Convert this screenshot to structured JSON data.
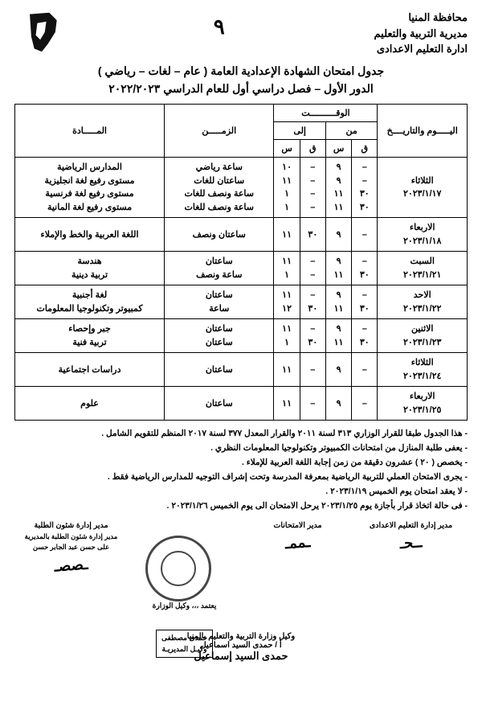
{
  "header": {
    "governorate": "محافظة المنيا",
    "directorate": "مديرية التربية والتعليم",
    "department": "ادارة التعليم الاعدادى",
    "page_number": "٩"
  },
  "title": {
    "line1": "جدول امتحان الشهادة الإعدادية العامة ( عام – لغات – رياضي )",
    "line2": "الدور الأول – فصل دراسي أول  للعام الدراسي ٢٠٢٢/٢٠٢٣"
  },
  "table": {
    "head": {
      "date": "اليـــــوم والتاريــــخ",
      "time": "الوقــــــــــت",
      "from": "من",
      "to": "إلى",
      "q": "ق",
      "s": "س",
      "duration": "الزمـــــن",
      "subject": "المـــــادة"
    },
    "rows": [
      {
        "date": "الثلاثاء\n٢٠٢٣/١/١٧",
        "from_q": "–\n–\n٣٠\n٣٠",
        "from_s": "٩\n٩\n١١\n١١",
        "to_q": "–\n–\n–\n–",
        "to_s": "١٠\n١١\n١\n١",
        "duration": "ساعة رياضي\nساعتان للغات\nساعة ونصف للغات\nساعة ونصف للغات",
        "subject": "المدارس الرياضية\nمستوى رفيع لغة انجليزية\nمستوى رفيع لغة فرنسية\nمستوى رفيع لغة المانية"
      },
      {
        "date": "الاربعاء\n٢٠٢٣/١/١٨",
        "from_q": "–",
        "from_s": "٩",
        "to_q": "٣٠",
        "to_s": "١١",
        "duration": "ساعتان ونصف",
        "subject": "اللغة العربية والخط والإملاء"
      },
      {
        "date": "السبت\n٢٠٢٣/١/٢١",
        "from_q": "–\n٣٠",
        "from_s": "٩\n١١",
        "to_q": "–\n–",
        "to_s": "١١\n١",
        "duration": "ساعتان\nساعة ونصف",
        "subject": "هندسة\nتربية دينية"
      },
      {
        "date": "الاحد\n٢٠٢٣/١/٢٢",
        "from_q": "–\n٣٠",
        "from_s": "٩\n١١",
        "to_q": "–\n٣٠",
        "to_s": "١١\n١٢",
        "duration": "ساعتان\nساعة",
        "subject": "لغة أجنبية\nكمبيوتر وتكنولوجيا المعلومات"
      },
      {
        "date": "الاثنين\n٢٠٢٣/١/٢٣",
        "from_q": "–\n٣٠",
        "from_s": "٩\n١١",
        "to_q": "–\n٣٠",
        "to_s": "١١\n١",
        "duration": "ساعتان\nساعتان",
        "subject": "جبر وإحصاء\nتربية فنية"
      },
      {
        "date": "الثلاثاء\n٢٠٢٣/١/٢٤",
        "from_q": "–",
        "from_s": "٩",
        "to_q": "–",
        "to_s": "١١",
        "duration": "ساعتان",
        "subject": "دراسات اجتماعية"
      },
      {
        "date": "الاربعاء\n٢٠٢٣/١/٢٥",
        "from_q": "–",
        "from_s": "٩",
        "to_q": "–",
        "to_s": "١١",
        "duration": "ساعتان",
        "subject": "علوم"
      }
    ]
  },
  "notes": [
    "- هذا الجدول طبقا للقرار الوزاري ٣١٣ لسنة ٢٠١١ والقرار المعدل ٣٧٧ لسنة ٢٠١٧ المنظم للتقويم الشامل .",
    "- يعفى طلبة المنازل من امتحانات الكمبيوتر وتكنولوجيا المعلومات النظري .",
    "- يخصص ( ٢٠ ) عشرون دقيقة من زمن إجابة اللغة العربية للإملاء .",
    "- يجرى الامتحان العملي للتربية الرياضية بمعرفة المدرسة وتحت إشراف التوجيه للمدارس الرياضية فقط .",
    "- لا يعقد امتحان يوم الخميس ٢٠٢٣/١/١٩ .",
    "- فى حالة اتخاذ قرار بأجازة يوم ٢٠٢٣/١/٢٥ يرحل الامتحان الى يوم الخميس ٢٠٢٣/١/٢٦ ."
  ],
  "signatures": {
    "right": "مدير إدارة التعليم الاعدادى",
    "mid_right": "مدير الامتحانات",
    "box_line1": "يعتمد ،،،  وكيل الوزارة",
    "box_line2": "حمدى مصطفى\nوكيـل المديريـة",
    "left_line1": "مدير إدارة شئون الطلبة",
    "left_line2": "مدير إدارة شئون الطلبة بالمديرية\nعلى حسن عبد الجابر حسن",
    "final1": "وكيل وزارة التربية والتعليم بالمنيا",
    "final2": "أ / حمدى السيد اسماعيل",
    "final3": "حمدى السيد إسماعيل"
  }
}
